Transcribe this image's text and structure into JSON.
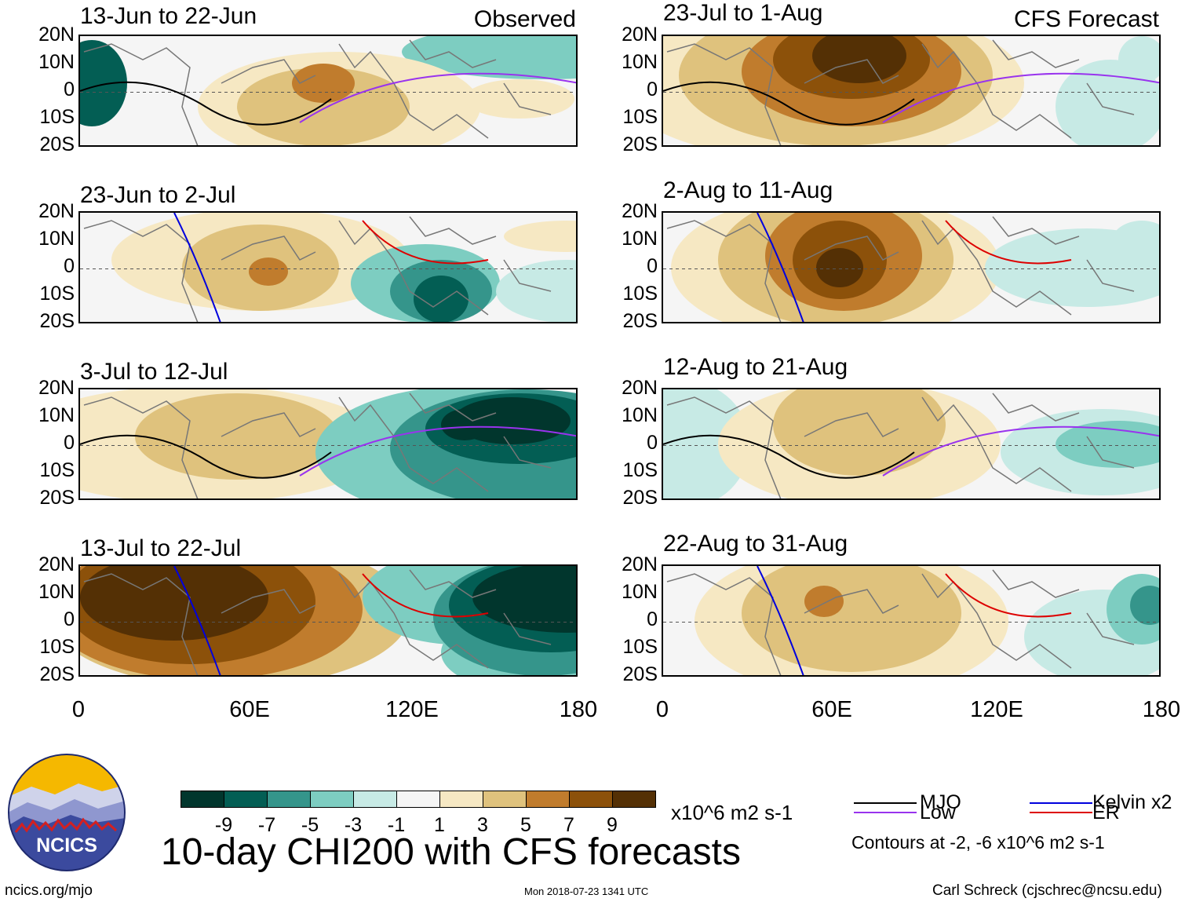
{
  "colors": {
    "scale": [
      "#01362d",
      "#035e54",
      "#35958b",
      "#7dcdc1",
      "#c7eae5",
      "#f5f5f5",
      "#f6e8c3",
      "#dfc27d",
      "#c07c2d",
      "#8c510a",
      "#543005"
    ],
    "mjo": "#000000",
    "kelvin": "#0000dd",
    "low": "#9933ee",
    "er": "#dd0000"
  },
  "panels": [
    {
      "id": "p1",
      "title": "13-Jun to 22-Jun",
      "label": "Observed",
      "blobs": [
        {
          "c": 1,
          "x": 15,
          "y": 60,
          "rx": 45,
          "ry": 55
        },
        {
          "c": 3,
          "x": 320,
          "y": 80,
          "rx": 45,
          "ry": 25
        },
        {
          "c": 3,
          "x": 590,
          "y": 20,
          "rx": 180,
          "ry": 35
        },
        {
          "c": 6,
          "x": 330,
          "y": 90,
          "rx": 180,
          "ry": 70
        },
        {
          "c": 7,
          "x": 310,
          "y": 90,
          "rx": 110,
          "ry": 50
        },
        {
          "c": 8,
          "x": 310,
          "y": 60,
          "rx": 40,
          "ry": 25
        },
        {
          "c": 6,
          "x": 560,
          "y": 80,
          "rx": 70,
          "ry": 25
        }
      ]
    },
    {
      "id": "p2",
      "title": "23-Jun to 2-Jul",
      "label": "",
      "blobs": [
        {
          "c": 6,
          "x": 230,
          "y": 60,
          "rx": 190,
          "ry": 65
        },
        {
          "c": 7,
          "x": 230,
          "y": 70,
          "rx": 100,
          "ry": 55
        },
        {
          "c": 8,
          "x": 240,
          "y": 75,
          "rx": 25,
          "ry": 18
        },
        {
          "c": 3,
          "x": 440,
          "y": 90,
          "rx": 95,
          "ry": 50
        },
        {
          "c": 2,
          "x": 460,
          "y": 100,
          "rx": 65,
          "ry": 40
        },
        {
          "c": 1,
          "x": 460,
          "y": 110,
          "rx": 35,
          "ry": 30
        },
        {
          "c": 6,
          "x": 620,
          "y": 30,
          "rx": 80,
          "ry": 20
        },
        {
          "c": 4,
          "x": 620,
          "y": 100,
          "rx": 90,
          "ry": 40
        }
      ]
    },
    {
      "id": "p3",
      "title": "3-Jul to 12-Jul",
      "label": "",
      "blobs": [
        {
          "c": 6,
          "x": 150,
          "y": 70,
          "rx": 240,
          "ry": 75
        },
        {
          "c": 7,
          "x": 200,
          "y": 60,
          "rx": 130,
          "ry": 55
        },
        {
          "c": 3,
          "x": 500,
          "y": 80,
          "rx": 200,
          "ry": 85
        },
        {
          "c": 2,
          "x": 570,
          "y": 75,
          "rx": 175,
          "ry": 75
        },
        {
          "c": 1,
          "x": 560,
          "y": 50,
          "rx": 120,
          "ry": 45
        },
        {
          "c": 0,
          "x": 550,
          "y": 40,
          "rx": 75,
          "ry": 30
        },
        {
          "c": 0,
          "x": 490,
          "y": 45,
          "rx": 30,
          "ry": 20
        }
      ]
    },
    {
      "id": "p4",
      "title": "13-Jul to 22-Jul",
      "label": "",
      "blobs": [
        {
          "c": 7,
          "x": 190,
          "y": 60,
          "rx": 230,
          "ry": 95
        },
        {
          "c": 8,
          "x": 160,
          "y": 55,
          "rx": 200,
          "ry": 90
        },
        {
          "c": 9,
          "x": 140,
          "y": 45,
          "rx": 160,
          "ry": 80
        },
        {
          "c": 10,
          "x": 120,
          "y": 40,
          "rx": 120,
          "ry": 55
        },
        {
          "c": 3,
          "x": 480,
          "y": 40,
          "rx": 120,
          "ry": 60
        },
        {
          "c": 3,
          "x": 570,
          "y": 110,
          "rx": 110,
          "ry": 50
        },
        {
          "c": 2,
          "x": 590,
          "y": 65,
          "rx": 140,
          "ry": 75
        },
        {
          "c": 1,
          "x": 600,
          "y": 50,
          "rx": 130,
          "ry": 60
        },
        {
          "c": 0,
          "x": 620,
          "y": 40,
          "rx": 120,
          "ry": 45
        }
      ]
    },
    {
      "id": "p5",
      "title": "23-Jul to 1-Aug",
      "label": "CFS Forecast",
      "blobs": [
        {
          "c": 6,
          "x": 200,
          "y": 60,
          "rx": 260,
          "ry": 100
        },
        {
          "c": 7,
          "x": 220,
          "y": 50,
          "rx": 200,
          "ry": 90
        },
        {
          "c": 8,
          "x": 240,
          "y": 45,
          "rx": 140,
          "ry": 70
        },
        {
          "c": 9,
          "x": 240,
          "y": 30,
          "rx": 100,
          "ry": 50
        },
        {
          "c": 10,
          "x": 250,
          "y": 25,
          "rx": 60,
          "ry": 35
        },
        {
          "c": 4,
          "x": 570,
          "y": 90,
          "rx": 70,
          "ry": 60
        },
        {
          "c": 4,
          "x": 610,
          "y": 30,
          "rx": 30,
          "ry": 30
        }
      ]
    },
    {
      "id": "p6",
      "title": "2-Aug to 11-Aug",
      "label": "",
      "blobs": [
        {
          "c": 6,
          "x": 220,
          "y": 70,
          "rx": 210,
          "ry": 95
        },
        {
          "c": 7,
          "x": 220,
          "y": 60,
          "rx": 150,
          "ry": 85
        },
        {
          "c": 8,
          "x": 230,
          "y": 55,
          "rx": 100,
          "ry": 70
        },
        {
          "c": 9,
          "x": 225,
          "y": 60,
          "rx": 60,
          "ry": 50
        },
        {
          "c": 10,
          "x": 225,
          "y": 70,
          "rx": 30,
          "ry": 25
        },
        {
          "c": 4,
          "x": 540,
          "y": 70,
          "rx": 130,
          "ry": 50
        },
        {
          "c": 4,
          "x": 610,
          "y": 40,
          "rx": 40,
          "ry": 30
        }
      ]
    },
    {
      "id": "p7",
      "title": "12-Aug to 21-Aug",
      "label": "",
      "blobs": [
        {
          "c": 4,
          "x": 30,
          "y": 70,
          "rx": 80,
          "ry": 80
        },
        {
          "c": 6,
          "x": 250,
          "y": 70,
          "rx": 180,
          "ry": 80
        },
        {
          "c": 7,
          "x": 250,
          "y": 45,
          "rx": 110,
          "ry": 65
        },
        {
          "c": 4,
          "x": 560,
          "y": 80,
          "rx": 130,
          "ry": 55
        },
        {
          "c": 3,
          "x": 580,
          "y": 70,
          "rx": 80,
          "ry": 30
        }
      ]
    },
    {
      "id": "p8",
      "title": "22-Aug to 31-Aug",
      "label": "",
      "blobs": [
        {
          "c": 6,
          "x": 240,
          "y": 70,
          "rx": 200,
          "ry": 95
        },
        {
          "c": 7,
          "x": 240,
          "y": 60,
          "rx": 140,
          "ry": 75
        },
        {
          "c": 8,
          "x": 205,
          "y": 45,
          "rx": 25,
          "ry": 20
        },
        {
          "c": 4,
          "x": 560,
          "y": 90,
          "rx": 100,
          "ry": 60
        },
        {
          "c": 3,
          "x": 610,
          "y": 55,
          "rx": 45,
          "ry": 45
        },
        {
          "c": 2,
          "x": 620,
          "y": 50,
          "rx": 25,
          "ry": 25
        }
      ]
    }
  ],
  "lat_labels": [
    "20N",
    "10N",
    "0",
    "10S",
    "20S"
  ],
  "lon_labels": [
    "0",
    "60E",
    "120E",
    "180"
  ],
  "chart_data": {
    "type": "heatmap",
    "title": "10-day CHI200 with CFS forecasts",
    "variable": "CHI200 anomaly",
    "units": "x10^6 m2 s-1",
    "x_axis": {
      "range": [
        0,
        180
      ],
      "ticks": [
        "0",
        "60E",
        "120E",
        "180"
      ]
    },
    "y_axis": {
      "range": [
        -20,
        20
      ],
      "ticks": [
        "20N",
        "10N",
        "0",
        "10S",
        "20S"
      ]
    },
    "colorbar_ticks": [
      "-9",
      "-7",
      "-5",
      "-3",
      "-1",
      "1",
      "3",
      "5",
      "7",
      "9"
    ],
    "levels": [
      -9,
      -7,
      -5,
      -3,
      -1,
      1,
      3,
      5,
      7,
      9
    ],
    "observed_periods": [
      "13-Jun to 22-Jun",
      "23-Jun to 2-Jul",
      "3-Jul to 12-Jul",
      "13-Jul to 22-Jul"
    ],
    "forecast_periods": [
      "23-Jul to 1-Aug",
      "2-Aug to 11-Aug",
      "12-Aug to 21-Aug",
      "22-Aug to 31-Aug"
    ],
    "legend": [
      {
        "name": "MJO",
        "color": "#000000"
      },
      {
        "name": "Kelvin x2",
        "color": "#0000dd"
      },
      {
        "name": "Low",
        "color": "#9933ee"
      },
      {
        "name": "ER",
        "color": "#dd0000"
      }
    ],
    "contour_note": "Contours at -2, -6 x10^6 m2 s-1"
  },
  "footer": {
    "units": "x10^6 m2 s-1",
    "main_title": "10-day CHI200 with CFS forecasts",
    "site": "ncics.org/mjo",
    "timestamp": "Mon 2018-07-23 1341 UTC",
    "author": "Carl Schreck (cjschrec@ncsu.edu)",
    "contour_note": "Contours at -2, -6 x10^6 m2 s-1",
    "logo_text": "NCICS"
  }
}
